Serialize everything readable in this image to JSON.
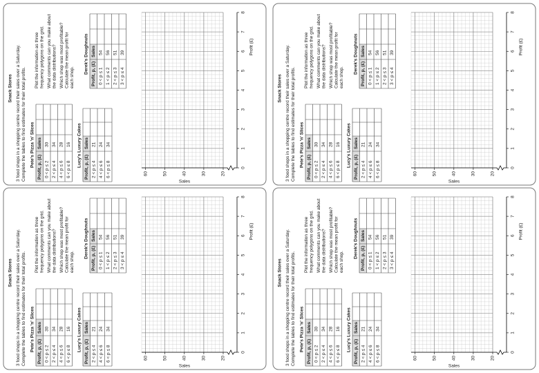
{
  "worksheet": {
    "title": "Snack Stores",
    "intro": "3 food shops in a shopping centre record their sales over a Saturday. Complete the tables to find estimates for their total profits.",
    "tables": [
      {
        "name": "Pete's Pizza 'n' Slices",
        "header": [
          "Profit, p, (£)",
          "Sales"
        ],
        "rows": [
          [
            "0 < p ≤ 2",
            30
          ],
          [
            "2 < p ≤ 4",
            34
          ],
          [
            "4 < p ≤ 6",
            28
          ],
          [
            "6 < p ≤ 8",
            16
          ]
        ]
      },
      {
        "name": "Lucy's Luxury Cakes",
        "header": [
          "Profit, p, (£)",
          "Sales"
        ],
        "rows": [
          [
            "2 < p ≤ 4",
            21
          ],
          [
            "4 < p ≤ 6",
            24
          ],
          [
            "6 < p ≤ 8",
            34
          ]
        ]
      },
      {
        "name": "Derek's Doughnuts",
        "header": [
          "Profit, p, (£)",
          "Sales"
        ],
        "rows": [
          [
            "0 < p ≤ 1",
            54
          ],
          [
            "1 < p ≤ 2",
            56
          ],
          [
            "2 < p ≤ 3",
            51
          ],
          [
            "3 < p ≤ 4",
            39
          ]
        ]
      }
    ],
    "questions": [
      "Plot the information as three frequency polygons on the grid.",
      "What comments can you make about the data distributions?",
      "Which shop was most profitable? Calculate the mean profit for each shop."
    ],
    "graph": {
      "x_label": "Profit (£)",
      "y_label": "Sales",
      "xlim": [
        0,
        8
      ],
      "xticks": [
        0,
        1,
        2,
        3,
        4,
        5,
        6,
        7,
        8
      ],
      "ylim": [
        20,
        62
      ],
      "yticks": [
        20,
        30,
        40,
        50,
        60
      ]
    }
  }
}
